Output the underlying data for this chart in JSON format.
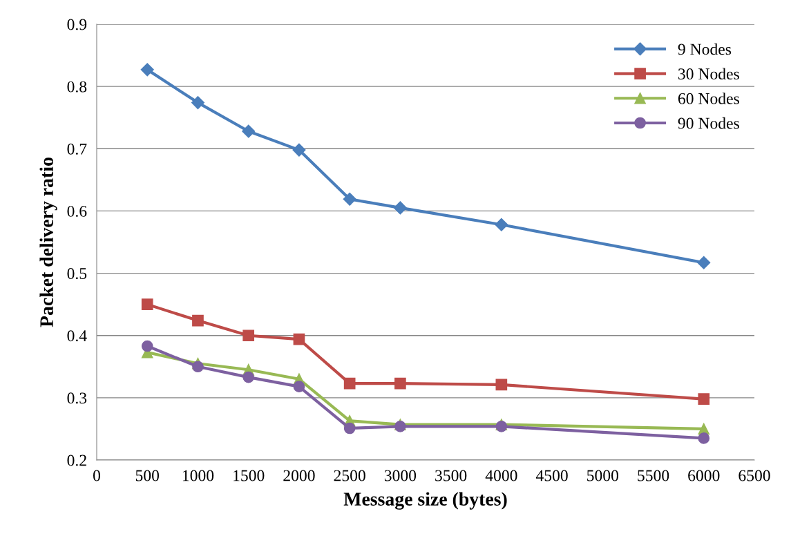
{
  "chart_data": {
    "type": "line",
    "xlabel": "Message size (bytes)",
    "ylabel": "Packet delivery ratio",
    "x": [
      500,
      1000,
      1500,
      2000,
      2500,
      3000,
      4000,
      6000
    ],
    "series": [
      {
        "name": "9 Nodes",
        "color": "#4a7ebb",
        "marker": "diamond",
        "values": [
          0.827,
          0.774,
          0.728,
          0.698,
          0.619,
          0.605,
          0.578,
          0.517
        ]
      },
      {
        "name": "30 Nodes",
        "color": "#be4b48",
        "marker": "square",
        "values": [
          0.45,
          0.424,
          0.4,
          0.394,
          0.323,
          0.323,
          0.321,
          0.298
        ]
      },
      {
        "name": "60 Nodes",
        "color": "#98b954",
        "marker": "triangle",
        "values": [
          0.373,
          0.355,
          0.345,
          0.33,
          0.263,
          0.257,
          0.257,
          0.25
        ]
      },
      {
        "name": "90 Nodes",
        "color": "#7d60a0",
        "marker": "circle",
        "values": [
          0.383,
          0.35,
          0.333,
          0.318,
          0.251,
          0.254,
          0.254,
          0.235
        ]
      }
    ],
    "xlim": [
      0,
      6500
    ],
    "xticks": [
      0,
      500,
      1000,
      1500,
      2000,
      2500,
      3000,
      3500,
      4000,
      4500,
      5000,
      5500,
      6000,
      6500
    ],
    "ylim": [
      0.2,
      0.9
    ],
    "yticks": [
      0.2,
      0.3,
      0.4,
      0.5,
      0.6,
      0.7,
      0.8,
      0.9
    ],
    "grid": "y",
    "legend": "top right"
  }
}
